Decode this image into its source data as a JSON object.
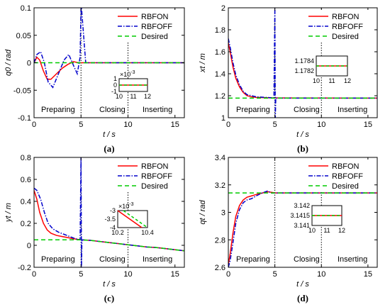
{
  "figure": {
    "xlabel": "t / s",
    "legend_labels": [
      "RBFON",
      "RBFOFF",
      "Desired"
    ],
    "phase_labels": [
      "Preparing",
      "Closing",
      "Inserting"
    ]
  },
  "colors": {
    "rbfon": "#ff0000",
    "rbfoff": "#0000cc",
    "desired": "#00cc00",
    "axis": "#000000",
    "phase_line": "#000000"
  },
  "chart_data": [
    {
      "type": "line",
      "panel_label": "(a)",
      "ylabel": "q0 / rad",
      "xlabel": "t / s",
      "xlim": [
        0,
        16
      ],
      "ylim": [
        -0.1,
        0.1
      ],
      "xticks": [
        0,
        5,
        10,
        15
      ],
      "yticks": [
        -0.1,
        -0.05,
        0,
        0.05,
        0.1
      ],
      "ytick_labels": [
        "-0.1",
        "-0.05",
        "0",
        "0.05",
        "0.1"
      ],
      "phase_boundaries": [
        5,
        10
      ],
      "legend": [
        "RBFON",
        "RBFOFF",
        "Desired"
      ],
      "series": [
        {
          "name": "RBFON",
          "x": [
            0,
            0.3,
            0.6,
            1.0,
            1.4,
            1.8,
            2.4,
            3.0,
            3.6,
            4.2,
            4.7,
            5.0,
            5.5,
            16
          ],
          "y": [
            0,
            0.01,
            0.005,
            -0.015,
            -0.03,
            -0.03,
            -0.02,
            -0.01,
            -0.003,
            0.002,
            0,
            0,
            0,
            0
          ]
        },
        {
          "name": "RBFOFF",
          "x": [
            0,
            0.3,
            0.7,
            1.1,
            1.5,
            2.0,
            2.6,
            3.2,
            3.7,
            4.2,
            4.6,
            4.9,
            5.0,
            5.05,
            5.5,
            16
          ],
          "y": [
            0,
            0.015,
            0.02,
            0,
            -0.035,
            -0.045,
            -0.02,
            0.005,
            0.015,
            -0.005,
            -0.02,
            0.01,
            0.1,
            0.1,
            0,
            0
          ]
        },
        {
          "name": "Desired",
          "x": [
            0,
            16
          ],
          "y": [
            0,
            0
          ]
        }
      ],
      "inset": {
        "xlim": [
          10,
          12
        ],
        "ylim": [
          -0.001,
          0.001
        ],
        "xticks": [
          10,
          11,
          12
        ],
        "yticks": [
          -1,
          0,
          1
        ],
        "scale_label": "×10^-3",
        "value": 0
      }
    },
    {
      "type": "line",
      "panel_label": "(b)",
      "ylabel": "xt / m",
      "xlabel": "t / s",
      "xlim": [
        0,
        16
      ],
      "ylim": [
        1,
        2
      ],
      "xticks": [
        0,
        5,
        10,
        15
      ],
      "yticks": [
        1,
        1.2,
        1.4,
        1.6,
        1.8,
        2
      ],
      "ytick_labels": [
        "1",
        "1.2",
        "1.4",
        "1.6",
        "1.8",
        "2"
      ],
      "phase_boundaries": [
        5,
        10
      ],
      "legend": [
        "RBFON",
        "RBFOFF",
        "Desired"
      ],
      "series": [
        {
          "name": "RBFON",
          "x": [
            0,
            0.2,
            0.5,
            0.8,
            1.2,
            1.6,
            2.0,
            2.5,
            3.0,
            4.0,
            5.0,
            16
          ],
          "y": [
            1.68,
            1.6,
            1.46,
            1.36,
            1.28,
            1.23,
            1.2,
            1.19,
            1.185,
            1.182,
            1.18,
            1.178
          ]
        },
        {
          "name": "RBFOFF",
          "x": [
            0,
            0.2,
            0.5,
            0.8,
            1.2,
            1.6,
            2.0,
            2.5,
            3.0,
            4.0,
            4.9,
            5.0,
            5.05,
            5.1,
            16
          ],
          "y": [
            1.72,
            1.64,
            1.5,
            1.39,
            1.3,
            1.24,
            1.21,
            1.2,
            1.19,
            1.185,
            1.18,
            2.0,
            1.0,
            1.178,
            1.178
          ]
        },
        {
          "name": "Desired",
          "x": [
            0,
            16
          ],
          "y": [
            1.178,
            1.178
          ]
        }
      ],
      "inset": {
        "xlim": [
          10,
          12
        ],
        "ylim": [
          1.1781,
          1.1785
        ],
        "xticks": [
          10,
          11,
          12
        ],
        "yticks": [
          1.1782,
          1.1784
        ],
        "value": 1.1783
      }
    },
    {
      "type": "line",
      "panel_label": "(c)",
      "ylabel": "yt / m",
      "xlabel": "t / s",
      "xlim": [
        0,
        16
      ],
      "ylim": [
        -0.2,
        0.8
      ],
      "xticks": [
        0,
        5,
        10,
        15
      ],
      "yticks": [
        -0.2,
        0,
        0.2,
        0.4,
        0.6,
        0.8
      ],
      "ytick_labels": [
        "-0.2",
        "0",
        "0.2",
        "0.4",
        "0.6",
        "0.8"
      ],
      "phase_boundaries": [
        5,
        10
      ],
      "legend": [
        "RBFON",
        "RBFOFF",
        "Desired"
      ],
      "series": [
        {
          "name": "RBFON",
          "x": [
            0,
            0.3,
            0.6,
            1.0,
            1.4,
            1.8,
            2.4,
            3.0,
            3.6,
            4.2,
            5.0,
            6,
            7,
            8,
            9,
            10,
            11,
            12,
            13,
            14,
            15,
            16
          ],
          "y": [
            0.5,
            0.42,
            0.3,
            0.2,
            0.14,
            0.11,
            0.09,
            0.08,
            0.07,
            0.06,
            0.05,
            0.045,
            0.035,
            0.025,
            0.015,
            0.005,
            -0.005,
            -0.015,
            -0.02,
            -0.03,
            -0.04,
            -0.05
          ]
        },
        {
          "name": "RBFOFF",
          "x": [
            0,
            0.3,
            0.7,
            1.1,
            1.5,
            2.0,
            2.6,
            3.2,
            3.8,
            4.4,
            4.9,
            5.0,
            5.05,
            5.1,
            6,
            7,
            8,
            9,
            10,
            11,
            12,
            13,
            14,
            15,
            16
          ],
          "y": [
            0.52,
            0.5,
            0.42,
            0.3,
            0.2,
            0.15,
            0.12,
            0.1,
            0.08,
            0.06,
            0.05,
            0.8,
            -0.2,
            0.05,
            0.045,
            0.035,
            0.025,
            0.015,
            0.005,
            -0.005,
            -0.015,
            -0.02,
            -0.03,
            -0.04,
            -0.05
          ]
        },
        {
          "name": "Desired",
          "x": [
            0,
            5,
            6,
            7,
            8,
            9,
            10,
            11,
            12,
            13,
            14,
            15,
            16
          ],
          "y": [
            0.05,
            0.05,
            0.045,
            0.035,
            0.025,
            0.015,
            0.005,
            -0.005,
            -0.015,
            -0.02,
            -0.03,
            -0.04,
            -0.05
          ]
        }
      ],
      "inset": {
        "xlim": [
          10.2,
          10.4
        ],
        "ylim": [
          -0.004,
          -0.003
        ],
        "xticks": [
          10.2,
          10.4
        ],
        "yticks": [
          -4,
          -3.5,
          -3
        ],
        "ytick_labels": [
          "-4",
          "-3.5",
          "-3"
        ],
        "scale_label": "×10^-3",
        "values": {
          "x": [
            10.2,
            10.4
          ],
          "y": [
            -0.003,
            -0.004
          ]
        }
      }
    },
    {
      "type": "line",
      "panel_label": "(d)",
      "ylabel": "qt / rad",
      "xlabel": "t / s",
      "xlim": [
        0,
        16
      ],
      "ylim": [
        2.6,
        3.4
      ],
      "xticks": [
        0,
        5,
        10,
        15
      ],
      "yticks": [
        2.6,
        2.8,
        3,
        3.2,
        3.4
      ],
      "ytick_labels": [
        "2.6",
        "2.8",
        "3",
        "3.2",
        "3.4"
      ],
      "phase_boundaries": [
        5,
        10
      ],
      "legend": [
        "RBFON",
        "RBFOFF",
        "Desired"
      ],
      "series": [
        {
          "name": "RBFON",
          "x": [
            0,
            0.2,
            0.5,
            0.8,
            1.2,
            1.6,
            2.0,
            2.5,
            3.0,
            3.6,
            4.2,
            4.7,
            5.0,
            16
          ],
          "y": [
            2.62,
            2.7,
            2.85,
            2.97,
            3.05,
            3.09,
            3.11,
            3.12,
            3.13,
            3.14,
            3.15,
            3.145,
            3.1415,
            3.1415
          ]
        },
        {
          "name": "RBFOFF",
          "x": [
            0,
            0.2,
            0.5,
            0.8,
            1.2,
            1.6,
            2.0,
            2.5,
            3.0,
            3.6,
            4.2,
            4.7,
            5.0,
            16
          ],
          "y": [
            2.6,
            2.65,
            2.78,
            2.92,
            3.02,
            3.07,
            3.09,
            3.1,
            3.12,
            3.14,
            3.155,
            3.14,
            3.1415,
            3.1415
          ]
        },
        {
          "name": "Desired",
          "x": [
            0,
            16
          ],
          "y": [
            3.1415,
            3.1415
          ]
        }
      ],
      "inset": {
        "xlim": [
          10,
          12
        ],
        "ylim": [
          3.141,
          3.142
        ],
        "xticks": [
          10,
          11,
          12
        ],
        "yticks": [
          3.141,
          3.1415,
          3.142
        ],
        "ytick_labels": [
          "3.141",
          "3.1415",
          "3.142"
        ],
        "value": 3.1415
      }
    }
  ]
}
